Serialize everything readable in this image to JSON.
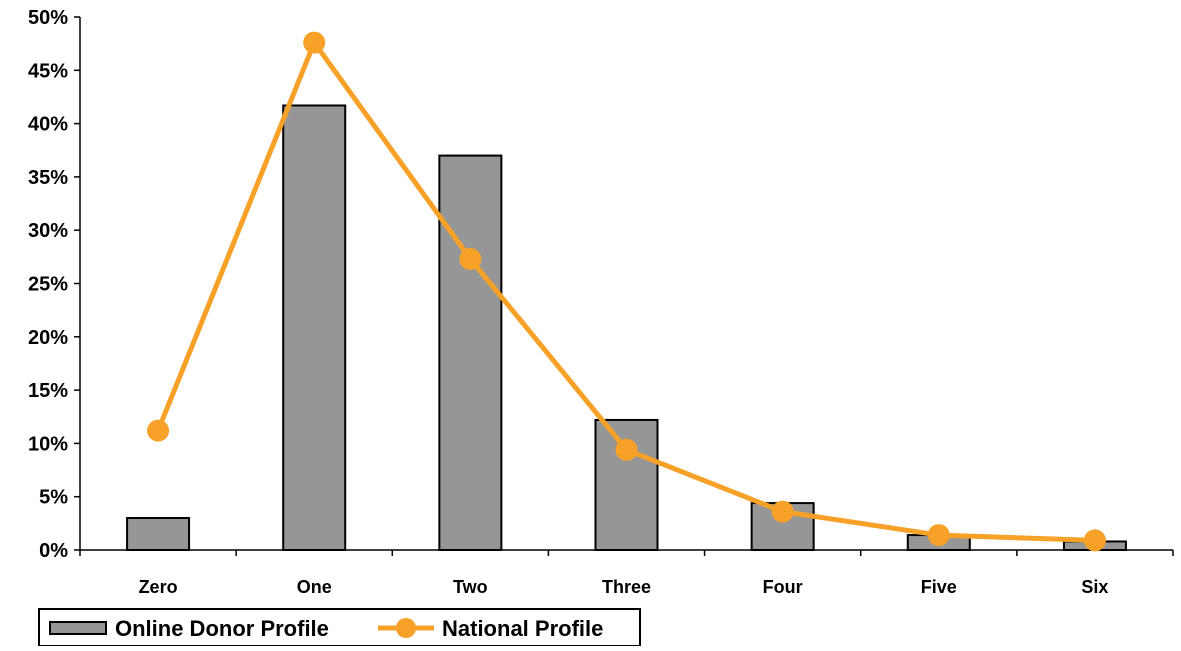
{
  "chart_data": {
    "type": "bar",
    "categories": [
      "Zero",
      "One",
      "Two",
      "Three",
      "Four",
      "Five",
      "Six"
    ],
    "series": [
      {
        "name": "Online Donor Profile",
        "type": "bar",
        "values": [
          3.0,
          41.7,
          37.0,
          12.2,
          4.4,
          1.4,
          0.8
        ],
        "color": "#969696"
      },
      {
        "name": "National Profile",
        "type": "line",
        "values": [
          11.2,
          47.6,
          27.3,
          9.4,
          3.6,
          1.4,
          0.9
        ],
        "color": "#F7A128"
      }
    ],
    "y_ticks": [
      "0%",
      "5%",
      "10%",
      "15%",
      "20%",
      "25%",
      "30%",
      "35%",
      "40%",
      "45%",
      "50%"
    ],
    "ylim": [
      0,
      50
    ],
    "y_unit": "%",
    "grid": false,
    "legend_position": "bottom-left"
  }
}
